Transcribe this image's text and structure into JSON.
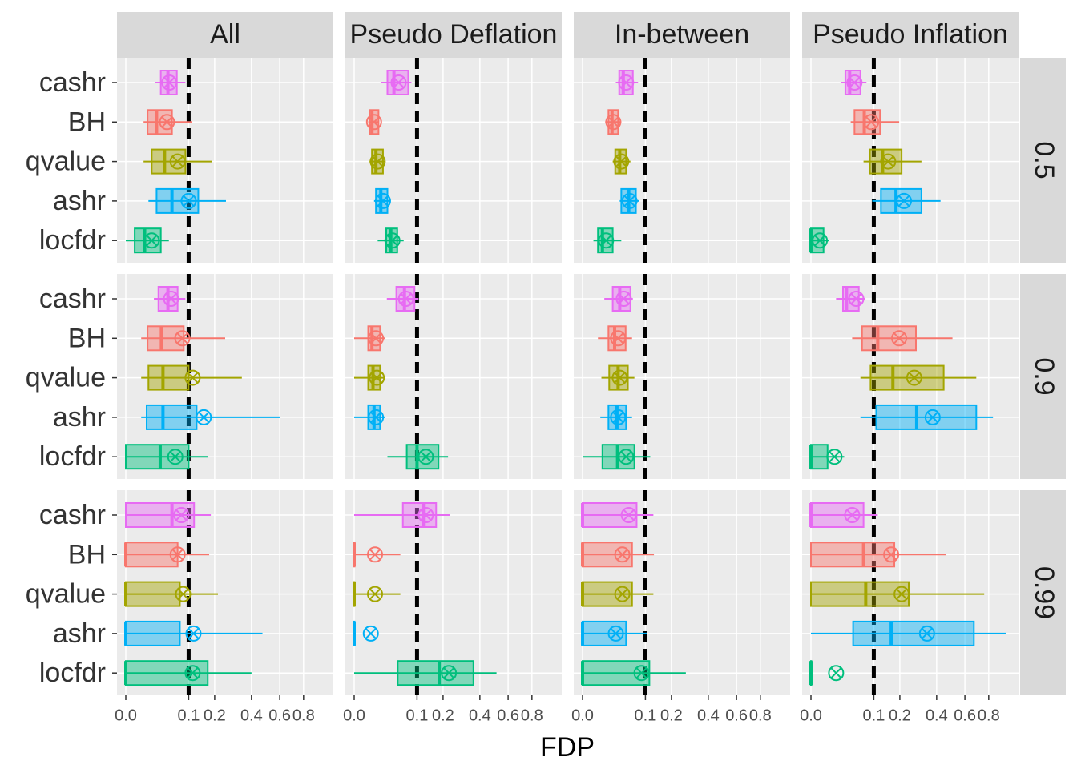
{
  "chart_data": {
    "type": "boxplot",
    "x_label": "FDP",
    "x_scale": "sqrt",
    "xlim": [
      0,
      1
    ],
    "xticks": [
      {
        "value": 0,
        "label": "0.0"
      },
      0.1,
      0.2,
      0.4,
      0.6,
      0.8
    ],
    "grid": true,
    "reference_line": 0.1,
    "facet_columns": [
      "All",
      "Pseudo Deflation",
      "In-between",
      "Pseudo Inflation"
    ],
    "facet_rows": [
      "0.5",
      "0.9",
      "0.99"
    ],
    "categories": [
      "cashr",
      "BH",
      "qvalue",
      "ashr",
      "locfdr"
    ],
    "colors": [
      "#E76BF3",
      "#F8766D",
      "#A3A500",
      "#00B0F6",
      "#00BF7D"
    ],
    "panels": [
      [
        [
          {
            "whisker_low": 0.022,
            "q1": 0.031,
            "median": 0.045,
            "q3": 0.066,
            "whisker_high": 0.09,
            "mean": 0.048
          },
          {
            "whisker_low": 0.008,
            "q1": 0.012,
            "median": 0.024,
            "q3": 0.054,
            "whisker_high": 0.11,
            "mean": 0.043
          },
          {
            "whisker_low": 0.008,
            "q1": 0.017,
            "median": 0.038,
            "q3": 0.09,
            "whisker_high": 0.187,
            "mean": 0.068
          },
          {
            "whisker_low": 0.013,
            "q1": 0.024,
            "median": 0.054,
            "q3": 0.133,
            "whisker_high": 0.254,
            "mean": 0.1
          },
          {
            "whisker_low": 0,
            "q1": 0.002,
            "median": 0.009,
            "q3": 0.031,
            "whisker_high": 0.047,
            "mean": 0.017
          }
        ],
        [
          {
            "whisker_low": 0.018,
            "q1": 0.028,
            "median": 0.04,
            "q3": 0.074,
            "whisker_high": 0.083,
            "mean": 0.05
          },
          {
            "whisker_low": 0.005,
            "q1": 0.006,
            "median": 0.008,
            "q3": 0.015,
            "whisker_high": 0.016,
            "mean": 0.01
          },
          {
            "whisker_low": 0.006,
            "q1": 0.008,
            "median": 0.012,
            "q3": 0.021,
            "whisker_high": 0.023,
            "mean": 0.014
          },
          {
            "whisker_low": 0.01,
            "q1": 0.012,
            "median": 0.018,
            "q3": 0.028,
            "whisker_high": 0.032,
            "mean": 0.021
          },
          {
            "whisker_low": 0.014,
            "q1": 0.026,
            "median": 0.034,
            "q3": 0.047,
            "whisker_high": 0.062,
            "mean": 0.037
          }
        ],
        [
          {
            "whisker_low": 0.028,
            "q1": 0.034,
            "median": 0.042,
            "q3": 0.064,
            "whisker_high": 0.078,
            "mean": 0.048
          },
          {
            "whisker_low": 0.013,
            "q1": 0.017,
            "median": 0.022,
            "q3": 0.032,
            "whisker_high": 0.038,
            "mean": 0.024
          },
          {
            "whisker_low": 0.023,
            "q1": 0.027,
            "median": 0.035,
            "q3": 0.048,
            "whisker_high": 0.058,
            "mean": 0.038
          },
          {
            "whisker_low": 0.035,
            "q1": 0.038,
            "median": 0.054,
            "q3": 0.072,
            "whisker_high": 0.081,
            "mean": 0.056
          },
          {
            "whisker_low": 0.003,
            "q1": 0.006,
            "median": 0.01,
            "q3": 0.023,
            "whisker_high": 0.038,
            "mean": 0.014
          }
        ],
        [
          {
            "whisker_low": 0.023,
            "q1": 0.03,
            "median": 0.038,
            "q3": 0.062,
            "whisker_high": 0.078,
            "mean": 0.048
          },
          {
            "whisker_low": 0.04,
            "q1": 0.048,
            "median": 0.072,
            "q3": 0.121,
            "whisker_high": 0.197,
            "mean": 0.092
          },
          {
            "whisker_low": 0.07,
            "q1": 0.088,
            "median": 0.13,
            "q3": 0.208,
            "whisker_high": 0.309,
            "mean": 0.151
          },
          {
            "whisker_low": 0.095,
            "q1": 0.124,
            "median": 0.183,
            "q3": 0.309,
            "whisker_high": 0.425,
            "mean": 0.219
          },
          {
            "whisker_low": 0,
            "q1": 0,
            "median": 0,
            "q3": 0.004,
            "whisker_high": 0.008,
            "mean": 0.002
          }
        ]
      ],
      [
        [
          {
            "whisker_low": 0.02,
            "q1": 0.027,
            "median": 0.045,
            "q3": 0.068,
            "whisker_high": 0.09,
            "mean": 0.052
          },
          {
            "whisker_low": 0.006,
            "q1": 0.012,
            "median": 0.032,
            "q3": 0.085,
            "whisker_high": 0.25,
            "mean": 0.081
          },
          {
            "whisker_low": 0.006,
            "q1": 0.013,
            "median": 0.035,
            "q3": 0.1,
            "whisker_high": 0.341,
            "mean": 0.113
          },
          {
            "whisker_low": 0.006,
            "q1": 0.011,
            "median": 0.035,
            "q3": 0.127,
            "whisker_high": 0.602,
            "mean": 0.154
          },
          {
            "whisker_low": 0,
            "q1": 0,
            "median": 0.03,
            "q3": 0.1,
            "whisker_high": 0.17,
            "mean": 0.062
          }
        ],
        [
          {
            "whisker_low": 0.027,
            "q1": 0.045,
            "median": 0.064,
            "q3": 0.092,
            "whisker_high": 0.105,
            "mean": 0.068
          },
          {
            "whisker_low": 0,
            "q1": 0.005,
            "median": 0.008,
            "q3": 0.017,
            "whisker_high": 0.024,
            "mean": 0.012
          },
          {
            "whisker_low": 0,
            "q1": 0.005,
            "median": 0.009,
            "q3": 0.017,
            "whisker_high": 0.024,
            "mean": 0.013
          },
          {
            "whisker_low": 0,
            "q1": 0.005,
            "median": 0.01,
            "q3": 0.017,
            "whisker_high": 0.024,
            "mean": 0.012
          },
          {
            "whisker_low": 0.028,
            "q1": 0.07,
            "median": 0.1,
            "q3": 0.18,
            "whisker_high": 0.223,
            "mean": 0.13
          }
        ],
        [
          {
            "whisker_low": 0.012,
            "q1": 0.023,
            "median": 0.035,
            "q3": 0.058,
            "whisker_high": 0.064,
            "mean": 0.043
          },
          {
            "whisker_low": 0.006,
            "q1": 0.017,
            "median": 0.026,
            "q3": 0.047,
            "whisker_high": 0.062,
            "mean": 0.032
          },
          {
            "whisker_low": 0.009,
            "q1": 0.018,
            "median": 0.032,
            "q3": 0.052,
            "whisker_high": 0.068,
            "mean": 0.035
          },
          {
            "whisker_low": 0.008,
            "q1": 0.017,
            "median": 0.03,
            "q3": 0.048,
            "whisker_high": 0.062,
            "mean": 0.032
          },
          {
            "whisker_low": 0,
            "q1": 0.01,
            "median": 0.031,
            "q3": 0.068,
            "whisker_high": 0.116,
            "mean": 0.048
          }
        ],
        [
          {
            "whisker_low": 0.016,
            "q1": 0.026,
            "median": 0.032,
            "q3": 0.058,
            "whisker_high": 0.074,
            "mean": 0.052
          },
          {
            "whisker_low": 0.043,
            "q1": 0.066,
            "median": 0.113,
            "q3": 0.279,
            "whisker_high": 0.507,
            "mean": 0.197
          },
          {
            "whisker_low": 0.062,
            "q1": 0.09,
            "median": 0.17,
            "q3": 0.446,
            "whisker_high": 0.692,
            "mean": 0.27
          },
          {
            "whisker_low": 0.062,
            "q1": 0.108,
            "median": 0.283,
            "q3": 0.692,
            "whisker_high": 0.839,
            "mean": 0.375
          },
          {
            "whisker_low": 0,
            "q1": 0,
            "median": 0,
            "q3": 0.007,
            "whisker_high": 0.028,
            "mean": 0.014
          }
        ]
      ],
      [
        [
          {
            "whisker_low": 0,
            "q1": 0,
            "median": 0.054,
            "q3": 0.118,
            "whisker_high": 0.183,
            "mean": 0.078
          },
          {
            "whisker_low": 0,
            "q1": 0,
            "median": 0,
            "q3": 0.068,
            "whisker_high": 0.176,
            "mean": 0.068
          },
          {
            "whisker_low": 0,
            "q1": 0,
            "median": 0,
            "q3": 0.074,
            "whisker_high": 0.215,
            "mean": 0.083
          },
          {
            "whisker_low": 0,
            "q1": 0,
            "median": 0,
            "q3": 0.074,
            "whisker_high": 0.473,
            "mean": 0.116
          },
          {
            "whisker_low": 0,
            "q1": 0,
            "median": 0,
            "q3": 0.17,
            "whisker_high": 0.4,
            "mean": 0.113
          }
        ],
        [
          {
            "whisker_low": 0,
            "q1": 0.06,
            "median": 0.121,
            "q3": 0.17,
            "whisker_high": 0.234,
            "mean": 0.13
          },
          {
            "whisker_low": 0,
            "q1": 0,
            "median": 0,
            "q3": 0,
            "whisker_high": 0.054,
            "mean": 0.011
          },
          {
            "whisker_low": 0,
            "q1": 0,
            "median": 0,
            "q3": 0,
            "whisker_high": 0.054,
            "mean": 0.011
          },
          {
            "whisker_low": 0,
            "q1": 0,
            "median": 0,
            "q3": 0,
            "whisker_high": 0,
            "mean": 0.007
          },
          {
            "whisker_low": 0,
            "q1": 0.048,
            "median": 0.183,
            "q3": 0.36,
            "whisker_high": 0.513,
            "mean": 0.227
          }
        ],
        [
          {
            "whisker_low": 0,
            "q1": 0,
            "median": 0,
            "q3": 0.074,
            "whisker_high": 0.127,
            "mean": 0.054
          },
          {
            "whisker_low": 0,
            "q1": 0,
            "median": 0,
            "q3": 0.062,
            "whisker_high": 0.129,
            "mean": 0.04
          },
          {
            "whisker_low": 0,
            "q1": 0,
            "median": 0,
            "q3": 0.062,
            "whisker_high": 0.127,
            "mean": 0.04
          },
          {
            "whisker_low": 0,
            "q1": 0,
            "median": 0,
            "q3": 0.048,
            "whisker_high": 0.105,
            "mean": 0.028
          },
          {
            "whisker_low": 0,
            "q1": 0,
            "median": 0,
            "q3": 0.113,
            "whisker_high": 0.27,
            "mean": 0.088
          }
        ],
        [
          {
            "whisker_low": 0,
            "q1": 0,
            "median": 0,
            "q3": 0.07,
            "whisker_high": 0.113,
            "mean": 0.043
          },
          {
            "whisker_low": 0,
            "q1": 0,
            "median": 0.07,
            "q3": 0.176,
            "whisker_high": 0.462,
            "mean": 0.163
          },
          {
            "whisker_low": 0,
            "q1": 0,
            "median": 0.076,
            "q3": 0.242,
            "whisker_high": 0.76,
            "mean": 0.208
          },
          {
            "whisker_low": 0,
            "q1": 0.045,
            "median": 0.163,
            "q3": 0.672,
            "whisker_high": 0.96,
            "mean": 0.341
          },
          {
            "whisker_low": 0,
            "q1": 0,
            "median": 0,
            "q3": 0,
            "whisker_high": 0,
            "mean": 0.016
          }
        ]
      ]
    ]
  }
}
